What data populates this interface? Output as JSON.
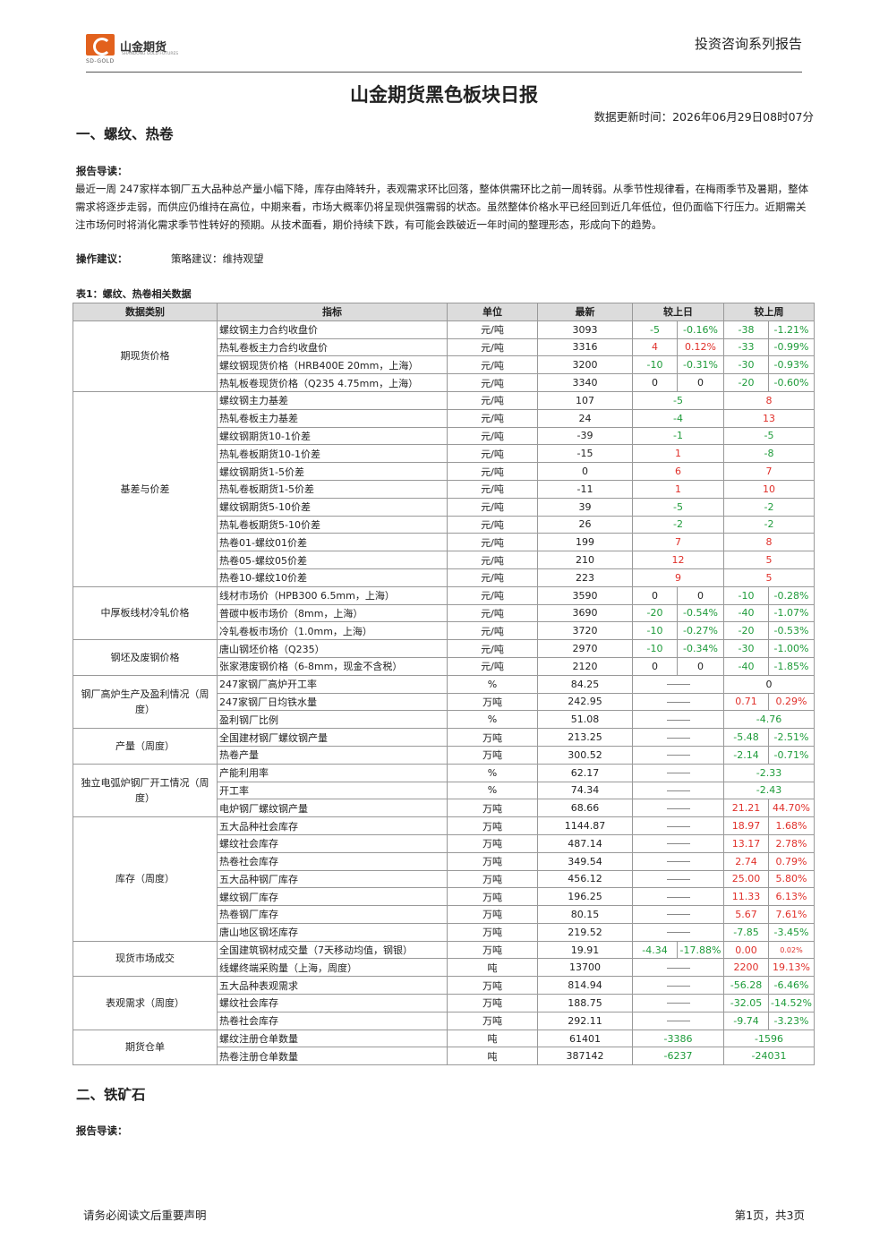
{
  "header": {
    "logo_cn": "山金期货",
    "logo_en": "SD-GOLD",
    "logo_en_sub": "SHANDONG GOLD FUTURES",
    "series": "投资咨询系列报告"
  },
  "title": "山金期货黑色板块日报",
  "update_time": "数据更新时间：2026年06月29日08时07分",
  "section1": {
    "heading": "一、螺纹、热卷",
    "guide_label": "报告导读：",
    "guide_text": "最近一周 247家样本钢厂五大品种总产量小幅下降，库存由降转升，表观需求环比回落，整体供需环比之前一周转弱。从季节性规律看，在梅雨季节及暑期，整体需求将逐步走弱，而供应仍维持在高位，中期来看，市场大概率仍将呈现供强需弱的状态。虽然整体价格水平已经回到近几年低位，但仍面临下行压力。近期需关注市场何时将消化需求季节性转好的预期。从技术面看，期价持续下跌，有可能会跌破近一年时间的整理形态，形成向下的趋势。",
    "op_label": "操作建议：",
    "op_text": "策略建议：维持观望",
    "table_caption": "表1：螺纹、热卷相关数据"
  },
  "table": {
    "headers": [
      "数据类别",
      "指标",
      "单位",
      "最新",
      "较上日",
      "较上周"
    ],
    "groups": [
      {
        "category": "期现货价格",
        "rows": [
          {
            "ind": "螺纹钢主力合约收盘价",
            "unit": "元/吨",
            "latest": "3093",
            "d1": "-5",
            "d2": "-0.16%",
            "w1": "-38",
            "w2": "-1.21%",
            "dc": "green",
            "wc": "green"
          },
          {
            "ind": "热轧卷板主力合约收盘价",
            "unit": "元/吨",
            "latest": "3316",
            "d1": "4",
            "d2": "0.12%",
            "w1": "-33",
            "w2": "-0.99%",
            "dc": "red",
            "wc": "green"
          },
          {
            "ind": "螺纹钢现货价格（HRB400E 20mm，上海）",
            "unit": "元/吨",
            "latest": "3200",
            "d1": "-10",
            "d2": "-0.31%",
            "w1": "-30",
            "w2": "-0.93%",
            "dc": "green",
            "wc": "green"
          },
          {
            "ind": "热轧板卷现货价格（Q235 4.75mm，上海）",
            "unit": "元/吨",
            "latest": "3340",
            "d1": "0",
            "d2": "0",
            "w1": "-20",
            "w2": "-0.60%",
            "dc": "",
            "wc": "green"
          }
        ]
      },
      {
        "category": "基差与价差",
        "rows": [
          {
            "ind": "螺纹钢主力基差",
            "unit": "元/吨",
            "latest": "107",
            "d": "-5",
            "w": "8",
            "dc": "green",
            "wc": "red"
          },
          {
            "ind": "热轧卷板主力基差",
            "unit": "元/吨",
            "latest": "24",
            "d": "-4",
            "w": "13",
            "dc": "green",
            "wc": "red"
          },
          {
            "ind": "螺纹钢期货10-1价差",
            "unit": "元/吨",
            "latest": "-39",
            "d": "-1",
            "w": "-5",
            "dc": "green",
            "wc": "green"
          },
          {
            "ind": "热轧卷板期货10-1价差",
            "unit": "元/吨",
            "latest": "-15",
            "d": "1",
            "w": "-8",
            "dc": "red",
            "wc": "green"
          },
          {
            "ind": "螺纹钢期货1-5价差",
            "unit": "元/吨",
            "latest": "0",
            "d": "6",
            "w": "7",
            "dc": "red",
            "wc": "red"
          },
          {
            "ind": "热轧卷板期货1-5价差",
            "unit": "元/吨",
            "latest": "-11",
            "d": "1",
            "w": "10",
            "dc": "red",
            "wc": "red"
          },
          {
            "ind": "螺纹钢期货5-10价差",
            "unit": "元/吨",
            "latest": "39",
            "d": "-5",
            "w": "-2",
            "dc": "green",
            "wc": "green"
          },
          {
            "ind": "热轧卷板期货5-10价差",
            "unit": "元/吨",
            "latest": "26",
            "d": "-2",
            "w": "-2",
            "dc": "green",
            "wc": "green"
          },
          {
            "ind": "热卷01-螺纹01价差",
            "unit": "元/吨",
            "latest": "199",
            "d": "7",
            "w": "8",
            "dc": "red",
            "wc": "red"
          },
          {
            "ind": "热卷05-螺纹05价差",
            "unit": "元/吨",
            "latest": "210",
            "d": "12",
            "w": "5",
            "dc": "red",
            "wc": "red"
          },
          {
            "ind": "热卷10-螺纹10价差",
            "unit": "元/吨",
            "latest": "223",
            "d": "9",
            "w": "5",
            "dc": "red",
            "wc": "red"
          }
        ]
      },
      {
        "category": "中厚板线材冷轧价格",
        "rows": [
          {
            "ind": "线材市场价（HPB300 6.5mm，上海）",
            "unit": "元/吨",
            "latest": "3590",
            "d1": "0",
            "d2": "0",
            "w1": "-10",
            "w2": "-0.28%",
            "dc": "",
            "wc": "green"
          },
          {
            "ind": "普碳中板市场价（8mm，上海）",
            "unit": "元/吨",
            "latest": "3690",
            "d1": "-20",
            "d2": "-0.54%",
            "w1": "-40",
            "w2": "-1.07%",
            "dc": "green",
            "wc": "green"
          },
          {
            "ind": "冷轧卷板市场价（1.0mm，上海）",
            "unit": "元/吨",
            "latest": "3720",
            "d1": "-10",
            "d2": "-0.27%",
            "w1": "-20",
            "w2": "-0.53%",
            "dc": "green",
            "wc": "green"
          }
        ]
      },
      {
        "category": "钢坯及废钢价格",
        "rows": [
          {
            "ind": "唐山钢坯价格（Q235）",
            "unit": "元/吨",
            "latest": "2970",
            "d1": "-10",
            "d2": "-0.34%",
            "w1": "-30",
            "w2": "-1.00%",
            "dc": "green",
            "wc": "green"
          },
          {
            "ind": "张家港废钢价格（6-8mm，现金不含税）",
            "unit": "元/吨",
            "latest": "2120",
            "d1": "0",
            "d2": "0",
            "w1": "-40",
            "w2": "-1.85%",
            "dc": "",
            "wc": "green"
          }
        ]
      },
      {
        "category": "钢厂高炉生产及盈利情况（周度）",
        "rows": [
          {
            "ind": "247家钢厂高炉开工率",
            "unit": "%",
            "latest": "84.25",
            "dash": true,
            "w": "0",
            "wc": ""
          },
          {
            "ind": "247家钢厂日均铁水量",
            "unit": "万吨",
            "latest": "242.95",
            "dash": true,
            "w1": "0.71",
            "w2": "0.29%",
            "wc": "red"
          },
          {
            "ind": "盈利钢厂比例",
            "unit": "%",
            "latest": "51.08",
            "dash": true,
            "w": "-4.76",
            "wc": "green"
          }
        ]
      },
      {
        "category": "产量（周度）",
        "rows": [
          {
            "ind": "全国建材钢厂螺纹钢产量",
            "unit": "万吨",
            "latest": "213.25",
            "dash": true,
            "w1": "-5.48",
            "w2": "-2.51%",
            "wc": "green"
          },
          {
            "ind": "热卷产量",
            "unit": "万吨",
            "latest": "300.52",
            "dash": true,
            "w1": "-2.14",
            "w2": "-0.71%",
            "wc": "green"
          }
        ]
      },
      {
        "category": "独立电弧炉钢厂开工情况（周度）",
        "rows": [
          {
            "ind": "产能利用率",
            "unit": "%",
            "latest": "62.17",
            "dash": true,
            "w": "-2.33",
            "wc": "green"
          },
          {
            "ind": "开工率",
            "unit": "%",
            "latest": "74.34",
            "dash": true,
            "w": "-2.43",
            "wc": "green"
          },
          {
            "ind": "电炉钢厂螺纹钢产量",
            "unit": "万吨",
            "latest": "68.66",
            "dash": true,
            "w1": "21.21",
            "w2": "44.70%",
            "wc": "red"
          }
        ]
      },
      {
        "category": "库存（周度）",
        "rows": [
          {
            "ind": "五大品种社会库存",
            "unit": "万吨",
            "latest": "1144.87",
            "dash": true,
            "w1": "18.97",
            "w2": "1.68%",
            "wc": "red"
          },
          {
            "ind": "螺纹社会库存",
            "unit": "万吨",
            "latest": "487.14",
            "dash": true,
            "w1": "13.17",
            "w2": "2.78%",
            "wc": "red"
          },
          {
            "ind": "热卷社会库存",
            "unit": "万吨",
            "latest": "349.54",
            "dash": true,
            "w1": "2.74",
            "w2": "0.79%",
            "wc": "red"
          },
          {
            "ind": "五大品种钢厂库存",
            "unit": "万吨",
            "latest": "456.12",
            "dash": true,
            "w1": "25.00",
            "w2": "5.80%",
            "wc": "red"
          },
          {
            "ind": "螺纹钢厂库存",
            "unit": "万吨",
            "latest": "196.25",
            "dash": true,
            "w1": "11.33",
            "w2": "6.13%",
            "wc": "red"
          },
          {
            "ind": "热卷钢厂库存",
            "unit": "万吨",
            "latest": "80.15",
            "dash": true,
            "w1": "5.67",
            "w2": "7.61%",
            "wc": "red"
          },
          {
            "ind": "唐山地区钢坯库存",
            "unit": "万吨",
            "latest": "219.52",
            "dash": true,
            "w1": "-7.85",
            "w2": "-3.45%",
            "wc": "green"
          }
        ]
      },
      {
        "category": "现货市场成交",
        "rows": [
          {
            "ind": "全国建筑钢材成交量（7天移动均值，钢银）",
            "unit": "万吨",
            "latest": "19.91",
            "d1": "-4.34",
            "d2": "-17.88%",
            "w1": "0.00",
            "w2": "0.02%",
            "dc": "green",
            "wc": "red",
            "w2small": true
          },
          {
            "ind": "线螺终端采购量（上海，周度）",
            "unit": "吨",
            "latest": "13700",
            "dash": true,
            "w1": "2200",
            "w2": "19.13%",
            "wc": "red"
          }
        ]
      },
      {
        "category": "表观需求（周度）",
        "rows": [
          {
            "ind": "五大品种表观需求",
            "unit": "万吨",
            "latest": "814.94",
            "dash": true,
            "w1": "-56.28",
            "w2": "-6.46%",
            "wc": "green"
          },
          {
            "ind": "螺纹社会库存",
            "unit": "万吨",
            "latest": "188.75",
            "dash": true,
            "w1": "-32.05",
            "w2": "-14.52%",
            "wc": "green"
          },
          {
            "ind": "热卷社会库存",
            "unit": "万吨",
            "latest": "292.11",
            "dash": true,
            "w1": "-9.74",
            "w2": "-3.23%",
            "wc": "green"
          }
        ]
      },
      {
        "category": "期货仓单",
        "rows": [
          {
            "ind": "螺纹注册仓单数量",
            "unit": "吨",
            "latest": "61401",
            "d": "-3386",
            "w": "-1596",
            "dc": "green",
            "wc": "green"
          },
          {
            "ind": "热卷注册仓单数量",
            "unit": "吨",
            "latest": "387142",
            "d": "-6237",
            "w": "-24031",
            "dc": "green",
            "wc": "green"
          }
        ]
      }
    ]
  },
  "section2": {
    "heading": "二、铁矿石",
    "guide_label": "报告导读："
  },
  "footer": {
    "left": "请务必阅读文后重要声明",
    "right": "第1页，共3页"
  }
}
